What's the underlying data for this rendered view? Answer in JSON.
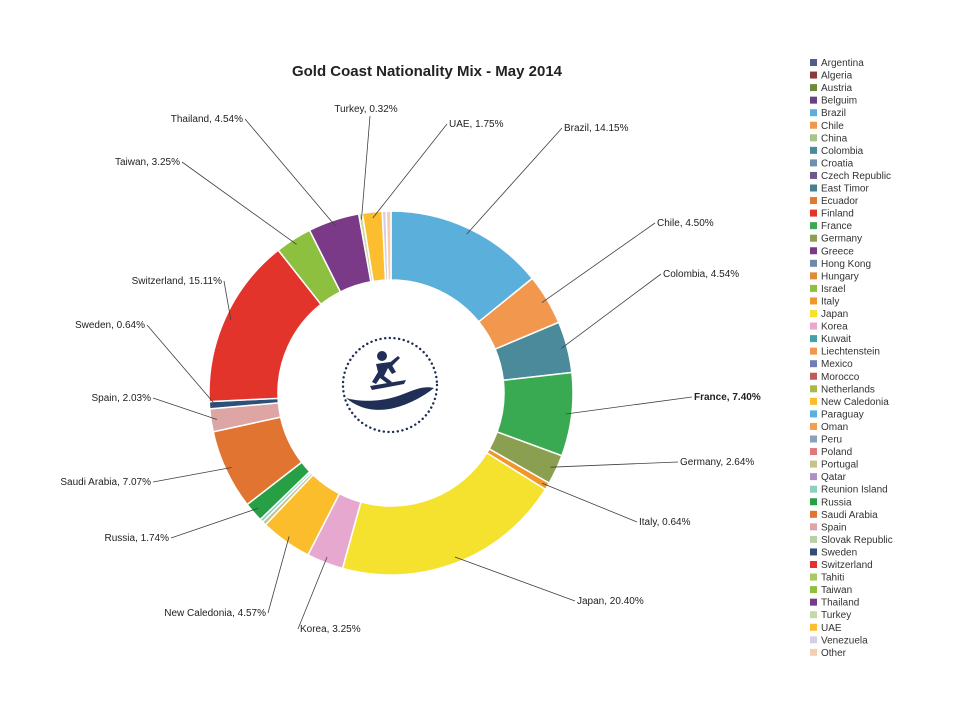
{
  "chart_data": {
    "type": "pie",
    "variant": "doughnut",
    "title": "Gold Coast Nationality Mix - May 2014",
    "legend_position": "right",
    "slices": [
      {
        "name": "Brazil",
        "value": 14.15,
        "color": "#5aafdb",
        "label": "Brazil, 14.15%"
      },
      {
        "name": "Chile",
        "value": 4.5,
        "color": "#f2984e",
        "label": "Chile, 4.50%"
      },
      {
        "name": "Colombia",
        "value": 4.54,
        "color": "#4a8a9a",
        "label": "Colombia, 4.54%"
      },
      {
        "name": "France",
        "value": 7.4,
        "color": "#3aaa52",
        "label": "France, 7.40%"
      },
      {
        "name": "Germany",
        "value": 2.64,
        "color": "#8aa050",
        "label": "Germany, 2.64%"
      },
      {
        "name": "Italy",
        "value": 0.64,
        "color": "#f0962a",
        "label": "Italy, 0.64%"
      },
      {
        "name": "Japan",
        "value": 20.4,
        "color": "#f5e22f",
        "label": "Japan, 20.40%"
      },
      {
        "name": "Korea",
        "value": 3.25,
        "color": "#e6a8cf",
        "label": "Korea, 3.25%"
      },
      {
        "name": "New Caledonia",
        "value": 4.57,
        "color": "#fbbd2c",
        "label": "New Caledonia, 4.57%"
      },
      {
        "name": "Portugal",
        "value": 0.35,
        "color": "#c4c48a",
        "label": ""
      },
      {
        "name": "Reunion Island",
        "value": 0.3,
        "color": "#8ed0c0",
        "label": ""
      },
      {
        "name": "Russia",
        "value": 1.74,
        "color": "#27a045",
        "label": "Russia, 1.74%"
      },
      {
        "name": "Saudi Arabia",
        "value": 7.07,
        "color": "#e07430",
        "label": "Saudi Arabia, 7.07%"
      },
      {
        "name": "Spain",
        "value": 2.03,
        "color": "#dea5a5",
        "label": "Spain, 2.03%"
      },
      {
        "name": "Sweden",
        "value": 0.64,
        "color": "#2e4f78",
        "label": "Sweden, 0.64%"
      },
      {
        "name": "Switzerland",
        "value": 15.11,
        "color": "#e3342b",
        "label": "Switzerland, 15.11%"
      },
      {
        "name": "Taiwan",
        "value": 3.25,
        "color": "#8ec040",
        "label": "Taiwan, 3.25%"
      },
      {
        "name": "Thailand",
        "value": 4.54,
        "color": "#7b3a88",
        "label": "Thailand, 4.54%"
      },
      {
        "name": "Turkey",
        "value": 0.32,
        "color": "#c6d9a4",
        "label": "Turkey, 0.32%"
      },
      {
        "name": "UAE",
        "value": 1.75,
        "color": "#fcbe2e",
        "label": "UAE, 1.75%"
      },
      {
        "name": "Venezuela",
        "value": 0.35,
        "color": "#d4cfe6",
        "label": ""
      },
      {
        "name": "Other",
        "value": 0.42,
        "color": "#f6cfae",
        "label": ""
      }
    ],
    "legend": [
      {
        "name": "Argentina",
        "color": "#4f5f8a"
      },
      {
        "name": "Algeria",
        "color": "#8b3a3a"
      },
      {
        "name": "Austria",
        "color": "#6d8a3a"
      },
      {
        "name": "Belguim",
        "color": "#6a3f8a"
      },
      {
        "name": "Brazil",
        "color": "#5aafdb"
      },
      {
        "name": "Chile",
        "color": "#f2984e"
      },
      {
        "name": "China",
        "color": "#a8c48a"
      },
      {
        "name": "Colombia",
        "color": "#4a8a9a"
      },
      {
        "name": "Croatia",
        "color": "#6f8fae"
      },
      {
        "name": "Czech Republic",
        "color": "#6a5a8a"
      },
      {
        "name": "East Timor",
        "color": "#4a7f8f"
      },
      {
        "name": "Ecuador",
        "color": "#e07a30"
      },
      {
        "name": "Finland",
        "color": "#e3342b"
      },
      {
        "name": "France",
        "color": "#3aaa52"
      },
      {
        "name": "Germany",
        "color": "#8aa050"
      },
      {
        "name": "Greece",
        "color": "#7b3a88"
      },
      {
        "name": "Hong Kong",
        "color": "#6a8aa8"
      },
      {
        "name": "Hungary",
        "color": "#e08a3a"
      },
      {
        "name": "Israel",
        "color": "#8ec040"
      },
      {
        "name": "Italy",
        "color": "#f0962a"
      },
      {
        "name": "Japan",
        "color": "#f5e22f"
      },
      {
        "name": "Korea",
        "color": "#e6a8cf"
      },
      {
        "name": "Kuwait",
        "color": "#4aa0a8"
      },
      {
        "name": "Liechtenstein",
        "color": "#f2984e"
      },
      {
        "name": "Mexico",
        "color": "#6f7fb0"
      },
      {
        "name": "Morocco",
        "color": "#c05a5a"
      },
      {
        "name": "Netherlands",
        "color": "#a8b84a"
      },
      {
        "name": "New Caledonia",
        "color": "#fbbd2c"
      },
      {
        "name": "Paraguay",
        "color": "#5aafdb"
      },
      {
        "name": "Oman",
        "color": "#f2a04e"
      },
      {
        "name": "Peru",
        "color": "#8aa0c0"
      },
      {
        "name": "Poland",
        "color": "#e07a7a"
      },
      {
        "name": "Portugal",
        "color": "#c4c48a"
      },
      {
        "name": "Qatar",
        "color": "#b090c0"
      },
      {
        "name": "Reunion Island",
        "color": "#8ed0c0"
      },
      {
        "name": "Russia",
        "color": "#27a045"
      },
      {
        "name": "Saudi Arabia",
        "color": "#e07430"
      },
      {
        "name": "Spain",
        "color": "#dea5a5"
      },
      {
        "name": "Slovak Republic",
        "color": "#b8d0a8"
      },
      {
        "name": "Sweden",
        "color": "#2e4f78"
      },
      {
        "name": "Switzerland",
        "color": "#e3342b"
      },
      {
        "name": "Tahiti",
        "color": "#a8c860"
      },
      {
        "name": "Taiwan",
        "color": "#8ec040"
      },
      {
        "name": "Thailand",
        "color": "#7b3a88"
      },
      {
        "name": "Turkey",
        "color": "#c6d9a4"
      },
      {
        "name": "UAE",
        "color": "#fcbe2e"
      },
      {
        "name": "Venezuela",
        "color": "#d4cfe6"
      },
      {
        "name": "Other",
        "color": "#f6cfae"
      }
    ]
  }
}
